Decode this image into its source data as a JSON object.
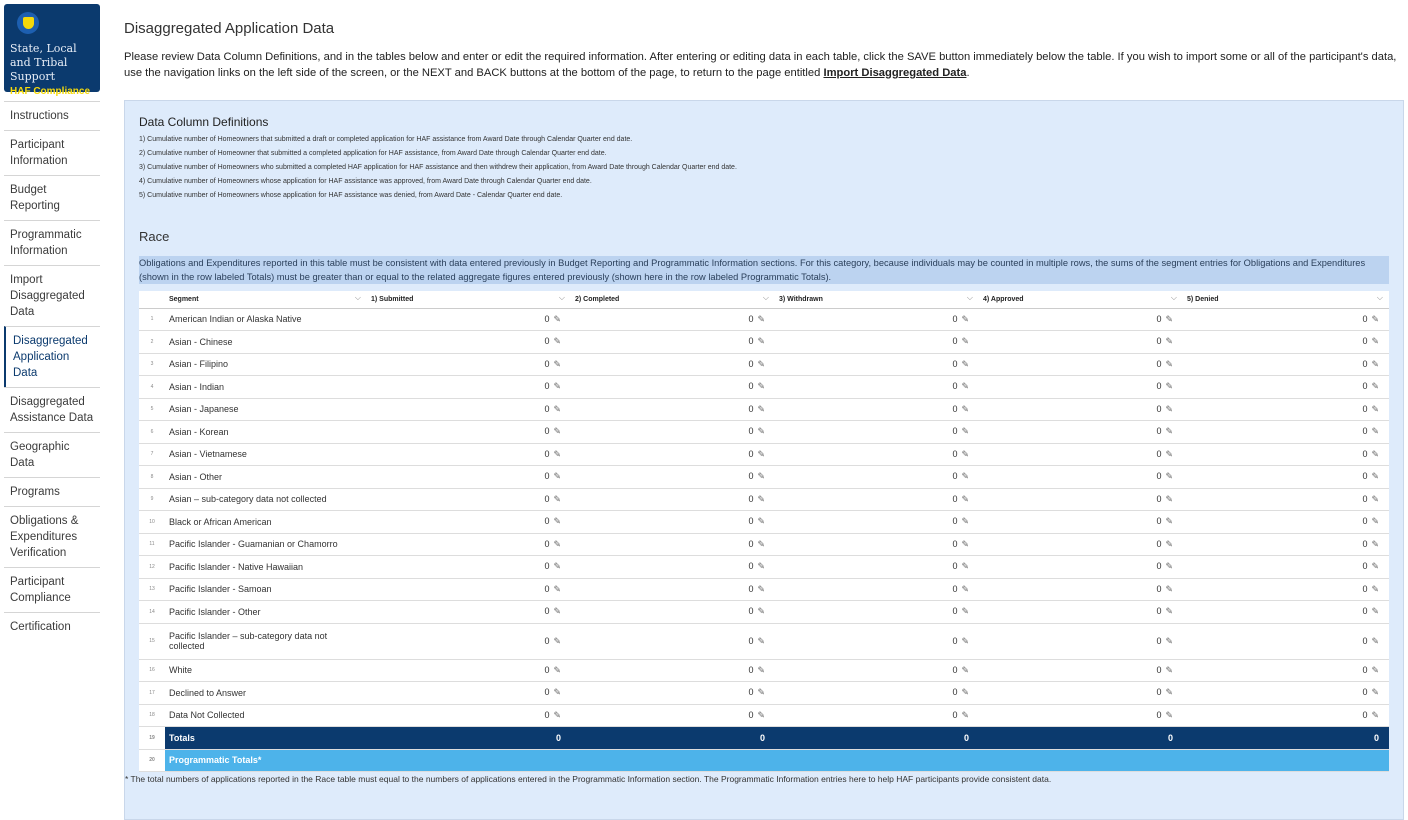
{
  "brand": {
    "title": "State, Local and Tribal Support",
    "subtitle": "HAF Compliance"
  },
  "sidebar": {
    "items": [
      {
        "label": "Instructions"
      },
      {
        "label": "Participant Information"
      },
      {
        "label": "Budget Reporting"
      },
      {
        "label": "Programmatic Information"
      },
      {
        "label": "Import Disaggregated Data"
      },
      {
        "label": "Disaggregated Application Data",
        "active": true
      },
      {
        "label": "Disaggregated Assistance Data"
      },
      {
        "label": "Geographic Data"
      },
      {
        "label": "Programs"
      },
      {
        "label": "Obligations & Expenditures Verification"
      },
      {
        "label": "Participant Compliance"
      },
      {
        "label": "Certification"
      }
    ]
  },
  "page": {
    "title": "Disaggregated Application Data",
    "intro": "Please review Data Column Definitions, and in the tables below and enter or edit the required information. After entering or editing data in each table, click the SAVE button immediately below the table. If you wish to import some or all of the participant's data, use the navigation links on the left side of the screen, or the NEXT and BACK buttons at the bottom of the page, to return to the page entitled ",
    "intro_link": "Import Disaggregated Data",
    "intro_end": "."
  },
  "definitions": {
    "title": "Data Column Definitions",
    "items": [
      "1) Cumulative number of Homeowners that submitted a draft or completed application for HAF assistance from Award Date through Calendar Quarter end date.",
      "2) Cumulative number of Homeowner that submitted a completed application for HAF assistance, from Award Date through Calendar Quarter end date.",
      "3) Cumulative number of Homeowners who submitted a completed HAF application for HAF assistance and then withdrew their application, from Award Date through Calendar Quarter end date.",
      "4) Cumulative number of Homeowners whose application for HAF assistance was approved, from Award Date through Calendar Quarter end date.",
      "5) Cumulative number of Homeowners whose application for HAF assistance was denied, from Award Date - Calendar Quarter end date."
    ]
  },
  "race": {
    "title": "Race",
    "note": "Obligations and Expenditures reported in this table must be consistent with data entered previously in Budget Reporting and Programmatic Information sections. For this category, because individuals may be counted in multiple rows, the sums of the segment entries for Obligations and Expenditures (shown in the row labeled Totals) must be greater than or equal to the related aggregate figures entered previously (shown here in the row labeled Programmatic Totals).",
    "columns": [
      "Segment",
      "1) Submitted",
      "2) Completed",
      "3) Withdrawn",
      "4) Approved",
      "5) Denied"
    ],
    "rows": [
      {
        "n": "1",
        "segment": "American Indian or Alaska Native",
        "values": [
          "0",
          "0",
          "0",
          "0",
          "0"
        ]
      },
      {
        "n": "2",
        "segment": "Asian - Chinese",
        "values": [
          "0",
          "0",
          "0",
          "0",
          "0"
        ]
      },
      {
        "n": "3",
        "segment": "Asian - Filipino",
        "values": [
          "0",
          "0",
          "0",
          "0",
          "0"
        ]
      },
      {
        "n": "4",
        "segment": "Asian - Indian",
        "values": [
          "0",
          "0",
          "0",
          "0",
          "0"
        ]
      },
      {
        "n": "5",
        "segment": "Asian - Japanese",
        "values": [
          "0",
          "0",
          "0",
          "0",
          "0"
        ]
      },
      {
        "n": "6",
        "segment": "Asian - Korean",
        "values": [
          "0",
          "0",
          "0",
          "0",
          "0"
        ]
      },
      {
        "n": "7",
        "segment": "Asian - Vietnamese",
        "values": [
          "0",
          "0",
          "0",
          "0",
          "0"
        ]
      },
      {
        "n": "8",
        "segment": "Asian - Other",
        "values": [
          "0",
          "0",
          "0",
          "0",
          "0"
        ]
      },
      {
        "n": "9",
        "segment": "Asian – sub-category data not collected",
        "values": [
          "0",
          "0",
          "0",
          "0",
          "0"
        ]
      },
      {
        "n": "10",
        "segment": "Black or African American",
        "values": [
          "0",
          "0",
          "0",
          "0",
          "0"
        ]
      },
      {
        "n": "11",
        "segment": "Pacific Islander - Guamanian or Chamorro",
        "values": [
          "0",
          "0",
          "0",
          "0",
          "0"
        ]
      },
      {
        "n": "12",
        "segment": "Pacific Islander - Native Hawaiian",
        "values": [
          "0",
          "0",
          "0",
          "0",
          "0"
        ]
      },
      {
        "n": "13",
        "segment": "Pacific Islander - Samoan",
        "values": [
          "0",
          "0",
          "0",
          "0",
          "0"
        ]
      },
      {
        "n": "14",
        "segment": "Pacific Islander - Other",
        "values": [
          "0",
          "0",
          "0",
          "0",
          "0"
        ]
      },
      {
        "n": "15",
        "segment": "Pacific Islander – sub-category data not collected",
        "values": [
          "0",
          "0",
          "0",
          "0",
          "0"
        ]
      },
      {
        "n": "16",
        "segment": "White",
        "values": [
          "0",
          "0",
          "0",
          "0",
          "0"
        ]
      },
      {
        "n": "17",
        "segment": "Declined to Answer",
        "values": [
          "0",
          "0",
          "0",
          "0",
          "0"
        ]
      },
      {
        "n": "18",
        "segment": "Data Not Collected",
        "values": [
          "0",
          "0",
          "0",
          "0",
          "0"
        ]
      }
    ],
    "totals": {
      "n": "19",
      "label": "Totals",
      "values": [
        "0",
        "0",
        "0",
        "0",
        "0"
      ]
    },
    "programmatic": {
      "n": "20",
      "label": "Programmatic Totals*",
      "values": [
        "",
        "",
        "",
        "",
        ""
      ]
    },
    "footnote": "* The total numbers of applications reported in the Race table must equal to the numbers of applications entered in the Programmatic Information section. The Programmatic Information entries here to help HAF participants provide consistent data."
  },
  "colors": {
    "navy": "#0b3a6e",
    "light_blue": "#4db3ea",
    "panel": "#deebfb",
    "accent_yellow": "#f5d90a"
  }
}
